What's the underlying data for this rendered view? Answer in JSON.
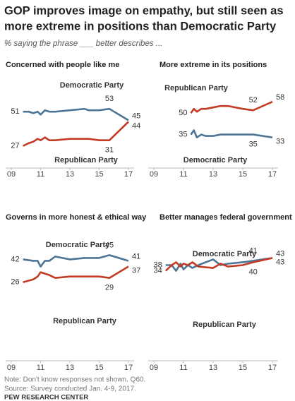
{
  "title": [
    "GOP improves image on empathy, but still seen as",
    "more extreme in positions than Democratic Party"
  ],
  "subtitle": "% saying the phrase ___ better describes ...",
  "chart_data": [
    {
      "type": "line",
      "title": "Concerned with people like me",
      "x": [
        2009.8,
        2010.2,
        2010.5,
        2010.8,
        2011.0,
        2011.3,
        2011.6,
        2012.0,
        2013.0,
        2014.0,
        2014.3,
        2015.0,
        2015.7,
        2017.0
      ],
      "series": [
        {
          "name": "Democratic Party",
          "color": "#4d7495",
          "values": [
            51,
            51,
            50,
            51,
            49,
            52,
            51,
            51,
            52,
            53,
            52,
            52,
            53,
            45
          ]
        },
        {
          "name": "Republican Party",
          "color": "#c23b22",
          "values": [
            27,
            29,
            30,
            32,
            31,
            33,
            31,
            31,
            32,
            32,
            32,
            31,
            31,
            44
          ]
        }
      ],
      "xlim": [
        2009,
        2017
      ],
      "ylim": [
        15,
        62
      ],
      "xticks": [
        {
          "value": 2009,
          "label": "09"
        },
        {
          "value": 2011,
          "label": "11"
        },
        {
          "value": 2013,
          "label": "13"
        },
        {
          "value": 2015,
          "label": "15"
        },
        {
          "value": 2017,
          "label": "17"
        }
      ]
    },
    {
      "type": "line",
      "title": "More extreme in its positions",
      "x": [
        2011.5,
        2011.7,
        2011.9,
        2012.2,
        2012.5,
        2013.0,
        2013.5,
        2014.0,
        2015.0,
        2015.7,
        2017.0
      ],
      "series": [
        {
          "name": "Republican Party",
          "color": "#c23b22",
          "values": [
            50,
            53,
            51,
            53,
            53,
            54,
            55,
            55,
            53,
            52,
            58
          ]
        },
        {
          "name": "Democratic Party",
          "color": "#4d7495",
          "values": [
            35,
            38,
            33,
            35,
            34,
            34,
            35,
            35,
            35,
            35,
            33
          ]
        }
      ],
      "xlim": [
        2009,
        2017
      ],
      "ylim": [
        15,
        62
      ],
      "xticks": [
        {
          "value": 2009,
          "label": "09"
        },
        {
          "value": 2011,
          "label": "11"
        },
        {
          "value": 2013,
          "label": "13"
        },
        {
          "value": 2015,
          "label": "15"
        },
        {
          "value": 2017,
          "label": "17"
        }
      ]
    },
    {
      "type": "line",
      "title": "Governs in more honest & ethical way",
      "x": [
        2009.8,
        2010.5,
        2010.8,
        2011.0,
        2011.3,
        2011.6,
        2012.0,
        2013.0,
        2014.0,
        2015.0,
        2015.7,
        2017.0
      ],
      "series": [
        {
          "name": "Democratic Party",
          "color": "#4d7495",
          "values": [
            42,
            41,
            41,
            37,
            41,
            41,
            44,
            42,
            43,
            43,
            45,
            41
          ]
        },
        {
          "name": "Republican Party",
          "color": "#c23b22",
          "values": [
            26,
            28,
            30,
            33,
            32,
            31,
            29,
            30,
            30,
            30,
            29,
            37
          ]
        }
      ],
      "xlim": [
        2009,
        2017
      ],
      "ylim": [
        15,
        62
      ],
      "xticks": [
        {
          "value": 2009,
          "label": "09"
        },
        {
          "value": 2011,
          "label": "11"
        },
        {
          "value": 2013,
          "label": "13"
        },
        {
          "value": 2015,
          "label": "15"
        },
        {
          "value": 2017,
          "label": "17"
        }
      ]
    },
    {
      "type": "line",
      "title": "Better manages federal government",
      "x": [
        2009.8,
        2010.2,
        2010.5,
        2010.8,
        2011.0,
        2011.3,
        2011.6,
        2012.0,
        2013.0,
        2013.5,
        2014.0,
        2015.0,
        2015.7,
        2017.0
      ],
      "series": [
        {
          "name": "Democratic Party",
          "color": "#4d7495",
          "values": [
            38,
            38,
            34,
            39,
            35,
            38,
            36,
            38,
            42,
            38,
            39,
            40,
            41,
            43
          ]
        },
        {
          "name": "Republican Party",
          "color": "#c23b22",
          "values": [
            34,
            38,
            40,
            37,
            39,
            38,
            40,
            37,
            36,
            39,
            37,
            38,
            40,
            43
          ]
        }
      ],
      "xlim": [
        2009,
        2017
      ],
      "ylim": [
        15,
        62
      ],
      "xticks": [
        {
          "value": 2009,
          "label": "09"
        },
        {
          "value": 2011,
          "label": "11"
        },
        {
          "value": 2013,
          "label": "13"
        },
        {
          "value": 2015,
          "label": "15"
        },
        {
          "value": 2017,
          "label": "17"
        }
      ]
    }
  ],
  "note": "Note: Don't know responses not shown. Q60.",
  "source": "Source: Survey conducted Jan. 4-9, 2017.",
  "credit": "PEW RESEARCH CENTER"
}
